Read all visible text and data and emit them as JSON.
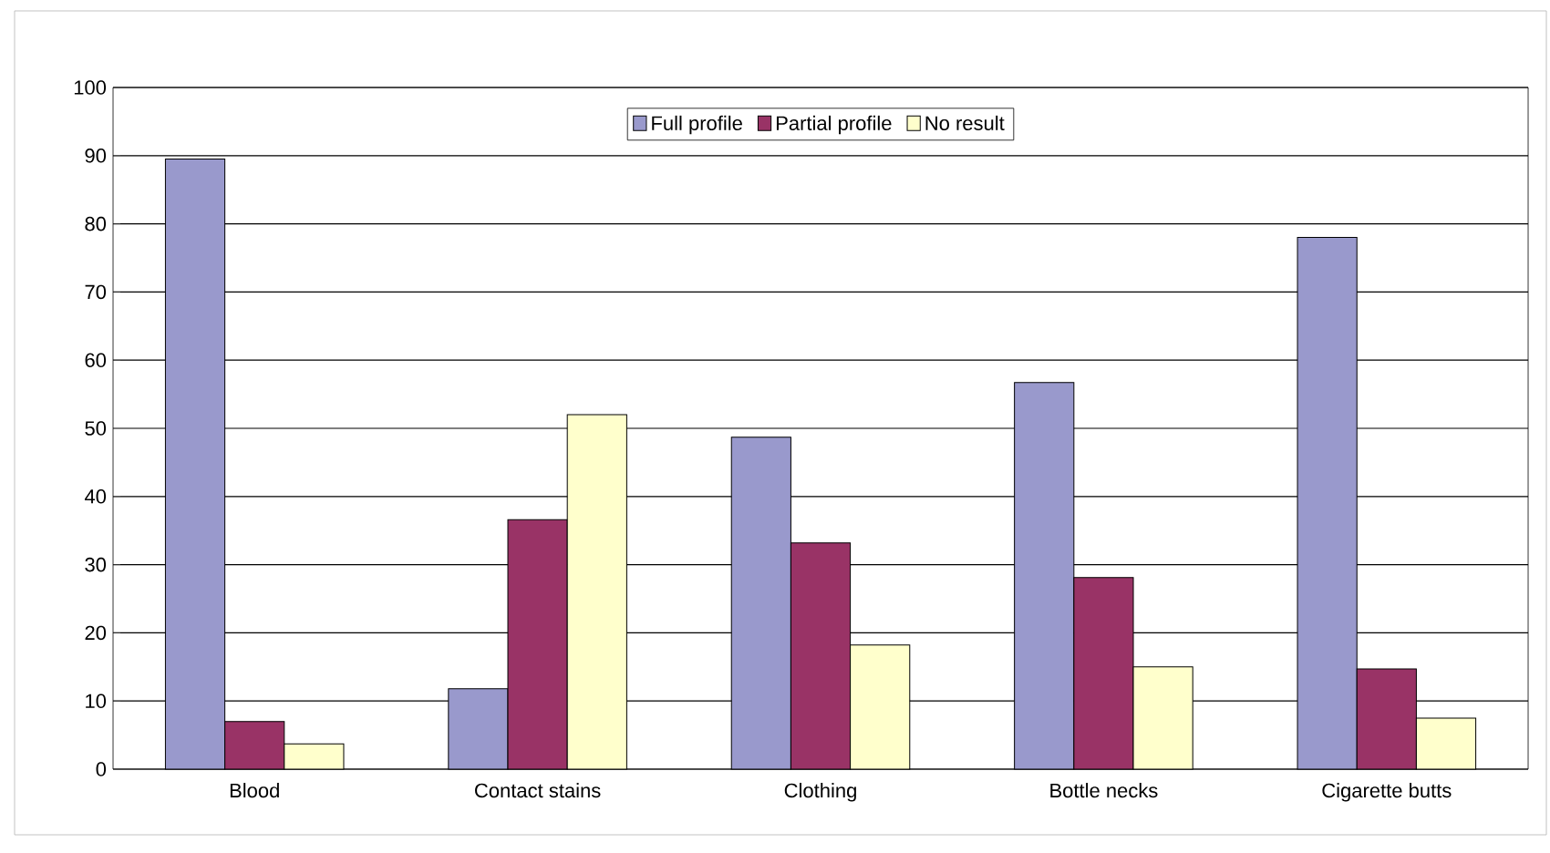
{
  "chart_data": {
    "type": "bar",
    "categories": [
      "Blood",
      "Contact stains",
      "Clothing",
      "Bottle necks",
      "Cigarette butts"
    ],
    "series": [
      {
        "name": "Full profile",
        "color": "#9999cc",
        "values": [
          89.5,
          11.8,
          48.7,
          56.7,
          78
        ]
      },
      {
        "name": "Partial profile",
        "color": "#993366",
        "values": [
          7,
          36.6,
          33.2,
          28.1,
          14.7
        ]
      },
      {
        "name": "No result",
        "color": "#ffffcc",
        "values": [
          3.7,
          52,
          18.2,
          15,
          7.5
        ]
      }
    ],
    "ylim": [
      0,
      100
    ],
    "yticks": [
      0,
      10,
      20,
      30,
      40,
      50,
      60,
      70,
      80,
      90,
      100
    ],
    "grid": "y",
    "legend": "top"
  }
}
